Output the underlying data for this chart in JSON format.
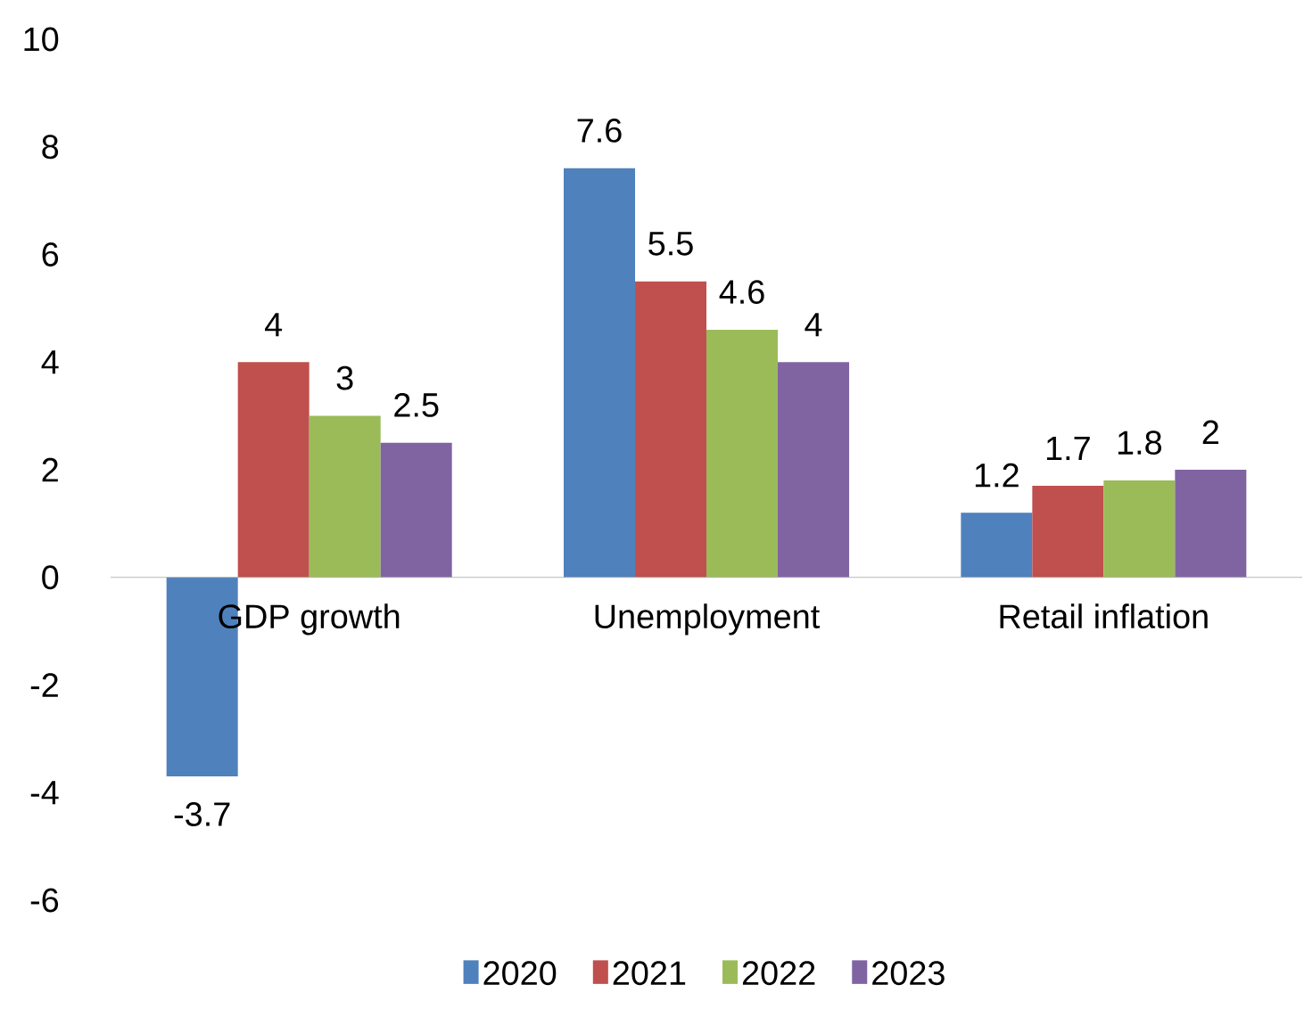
{
  "chart_data": {
    "type": "bar",
    "categories": [
      "GDP growth",
      "Unemployment",
      "Retail inflation"
    ],
    "series": [
      {
        "name": "2020",
        "color": "#4f81bd",
        "values": [
          -3.7,
          7.6,
          1.2
        ]
      },
      {
        "name": "2021",
        "color": "#c0504d",
        "values": [
          4,
          5.5,
          1.7
        ]
      },
      {
        "name": "2022",
        "color": "#9bbb59",
        "values": [
          3,
          4.6,
          1.8
        ]
      },
      {
        "name": "2023",
        "color": "#8064a2",
        "values": [
          2.5,
          4,
          2
        ]
      }
    ],
    "ylim": [
      -6,
      10
    ],
    "yticks": [
      -6,
      -4,
      -2,
      0,
      2,
      4,
      6,
      8,
      10
    ],
    "data_labels": true,
    "legend": "bottom",
    "grid": false
  }
}
